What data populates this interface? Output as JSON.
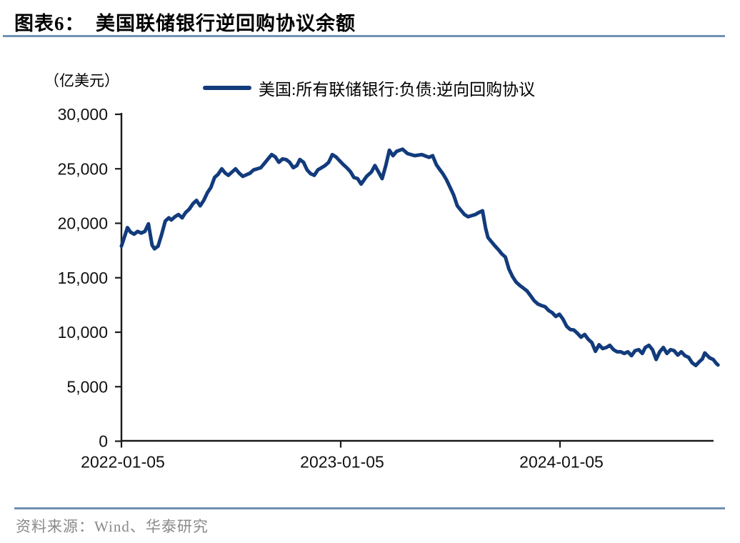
{
  "page": {
    "title": "图表6：  美国联储银行逆回购协议余额",
    "source": "资料来源：Wind、华泰研究"
  },
  "colors": {
    "series_line": "#123b7c",
    "divider_rule": "#7190b3",
    "axis": "#1a1a1a",
    "source_text": "#8a8a8a"
  },
  "chart_data": {
    "type": "line",
    "title": "美国联储银行逆回购协议余额",
    "unit_label": "（亿美元）",
    "legend_position": "top",
    "grid": false,
    "xlabel": "",
    "ylabel": "亿美元",
    "x_unit": "days since 2022-01-05",
    "xlim": [
      0,
      985
    ],
    "ylim": [
      0,
      30000
    ],
    "y_ticks": [
      {
        "v": 0,
        "label": "0"
      },
      {
        "v": 5000,
        "label": "5,000"
      },
      {
        "v": 10000,
        "label": "10,000"
      },
      {
        "v": 15000,
        "label": "15,000"
      },
      {
        "v": 20000,
        "label": "20,000"
      },
      {
        "v": 25000,
        "label": "25,000"
      },
      {
        "v": 30000,
        "label": "30,000"
      }
    ],
    "x_ticks": [
      {
        "d": 0,
        "label": "2022-01-05"
      },
      {
        "d": 365,
        "label": "2023-01-05"
      },
      {
        "d": 730,
        "label": "2024-01-05"
      }
    ],
    "series": [
      {
        "name": "美国:所有联储银行:负债:逆向回购协议",
        "color": "#123b7c",
        "points": [
          [
            0,
            17900
          ],
          [
            6,
            18900
          ],
          [
            10,
            19600
          ],
          [
            15,
            19200
          ],
          [
            21,
            19000
          ],
          [
            27,
            19250
          ],
          [
            33,
            19100
          ],
          [
            39,
            19250
          ],
          [
            45,
            19950
          ],
          [
            51,
            18000
          ],
          [
            55,
            17650
          ],
          [
            61,
            17900
          ],
          [
            67,
            19000
          ],
          [
            73,
            20200
          ],
          [
            79,
            20500
          ],
          [
            83,
            20300
          ],
          [
            89,
            20600
          ],
          [
            95,
            20800
          ],
          [
            101,
            20500
          ],
          [
            107,
            21000
          ],
          [
            113,
            21300
          ],
          [
            119,
            21800
          ],
          [
            125,
            22100
          ],
          [
            131,
            21600
          ],
          [
            137,
            22100
          ],
          [
            143,
            22800
          ],
          [
            149,
            23300
          ],
          [
            155,
            24200
          ],
          [
            161,
            24500
          ],
          [
            167,
            25000
          ],
          [
            173,
            24600
          ],
          [
            178,
            24400
          ],
          [
            184,
            24700
          ],
          [
            190,
            25000
          ],
          [
            196,
            24600
          ],
          [
            202,
            24300
          ],
          [
            208,
            24450
          ],
          [
            214,
            24600
          ],
          [
            220,
            24900
          ],
          [
            226,
            25000
          ],
          [
            232,
            25100
          ],
          [
            238,
            25500
          ],
          [
            244,
            25900
          ],
          [
            250,
            26300
          ],
          [
            256,
            26100
          ],
          [
            262,
            25600
          ],
          [
            268,
            25900
          ],
          [
            274,
            25850
          ],
          [
            280,
            25600
          ],
          [
            286,
            25100
          ],
          [
            292,
            25300
          ],
          [
            297,
            25850
          ],
          [
            303,
            25600
          ],
          [
            309,
            24900
          ],
          [
            315,
            24550
          ],
          [
            321,
            24400
          ],
          [
            327,
            24900
          ],
          [
            333,
            25100
          ],
          [
            339,
            25300
          ],
          [
            345,
            25600
          ],
          [
            351,
            26300
          ],
          [
            357,
            26100
          ],
          [
            363,
            25750
          ],
          [
            369,
            25400
          ],
          [
            375,
            25100
          ],
          [
            381,
            24750
          ],
          [
            387,
            24200
          ],
          [
            393,
            24100
          ],
          [
            399,
            23600
          ],
          [
            408,
            24300
          ],
          [
            416,
            24700
          ],
          [
            422,
            25300
          ],
          [
            428,
            24700
          ],
          [
            434,
            24100
          ],
          [
            440,
            25300
          ],
          [
            446,
            26700
          ],
          [
            452,
            26200
          ],
          [
            458,
            26600
          ],
          [
            468,
            26800
          ],
          [
            476,
            26400
          ],
          [
            488,
            26200
          ],
          [
            500,
            26300
          ],
          [
            512,
            26050
          ],
          [
            518,
            26200
          ],
          [
            524,
            25400
          ],
          [
            529,
            25000
          ],
          [
            535,
            24550
          ],
          [
            541,
            24000
          ],
          [
            547,
            23300
          ],
          [
            553,
            22600
          ],
          [
            559,
            21600
          ],
          [
            565,
            21200
          ],
          [
            571,
            20800
          ],
          [
            577,
            20600
          ],
          [
            583,
            20700
          ],
          [
            589,
            20800
          ],
          [
            595,
            21000
          ],
          [
            601,
            21150
          ],
          [
            606,
            19600
          ],
          [
            610,
            18700
          ],
          [
            616,
            18300
          ],
          [
            622,
            17900
          ],
          [
            628,
            17550
          ],
          [
            633,
            17200
          ],
          [
            639,
            16900
          ],
          [
            645,
            15800
          ],
          [
            651,
            15100
          ],
          [
            657,
            14600
          ],
          [
            663,
            14300
          ],
          [
            669,
            14050
          ],
          [
            675,
            13800
          ],
          [
            681,
            13350
          ],
          [
            687,
            12900
          ],
          [
            693,
            12600
          ],
          [
            699,
            12450
          ],
          [
            705,
            12350
          ],
          [
            711,
            12000
          ],
          [
            717,
            11800
          ],
          [
            723,
            11450
          ],
          [
            729,
            11650
          ],
          [
            735,
            11200
          ],
          [
            741,
            10550
          ],
          [
            747,
            10250
          ],
          [
            753,
            10200
          ],
          [
            759,
            9900
          ],
          [
            765,
            9550
          ],
          [
            771,
            9800
          ],
          [
            777,
            9350
          ],
          [
            783,
            9050
          ],
          [
            789,
            8250
          ],
          [
            795,
            8850
          ],
          [
            801,
            8500
          ],
          [
            807,
            8600
          ],
          [
            813,
            8800
          ],
          [
            819,
            8400
          ],
          [
            825,
            8200
          ],
          [
            831,
            8200
          ],
          [
            837,
            8050
          ],
          [
            843,
            8200
          ],
          [
            849,
            7850
          ],
          [
            855,
            8300
          ],
          [
            861,
            8400
          ],
          [
            867,
            8050
          ],
          [
            872,
            8600
          ],
          [
            878,
            8800
          ],
          [
            884,
            8400
          ],
          [
            890,
            7500
          ],
          [
            896,
            8200
          ],
          [
            902,
            8600
          ],
          [
            908,
            8050
          ],
          [
            914,
            8400
          ],
          [
            920,
            8300
          ],
          [
            926,
            7900
          ],
          [
            932,
            8200
          ],
          [
            938,
            7850
          ],
          [
            944,
            7700
          ],
          [
            950,
            7200
          ],
          [
            956,
            6950
          ],
          [
            962,
            7300
          ],
          [
            967,
            7550
          ],
          [
            971,
            8100
          ],
          [
            979,
            7650
          ],
          [
            985,
            7500
          ],
          [
            990,
            7150
          ],
          [
            993,
            7000
          ]
        ]
      }
    ]
  }
}
